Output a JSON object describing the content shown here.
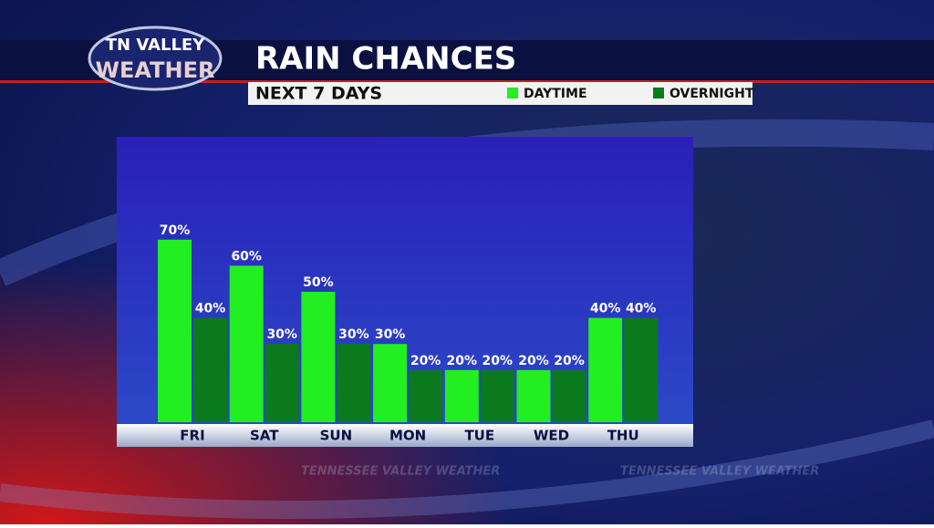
{
  "brand": {
    "line1": "TN VALLEY",
    "line2": "WEATHER",
    "watermark": "TENNESSEE VALLEY WEATHER"
  },
  "chart_data": {
    "type": "bar",
    "title": "RAIN CHANCES",
    "subtitle": "NEXT 7 DAYS",
    "categories": [
      "FRI",
      "SAT",
      "SUN",
      "MON",
      "TUE",
      "WED",
      "THU"
    ],
    "series": [
      {
        "name": "DAYTIME",
        "color": "#22ee22",
        "values": [
          70,
          60,
          50,
          30,
          20,
          20,
          40
        ],
        "value_labels": [
          "70%",
          "60%",
          "50%",
          "30%",
          "20%",
          "20%",
          "40%"
        ]
      },
      {
        "name": "OVERNIGHT",
        "color": "#0b7a1c",
        "values": [
          40,
          30,
          30,
          20,
          20,
          20,
          40
        ],
        "value_labels": [
          "40%",
          "30%",
          "30%",
          "20%",
          "20%",
          "20%",
          "40%"
        ]
      }
    ]
  }
}
